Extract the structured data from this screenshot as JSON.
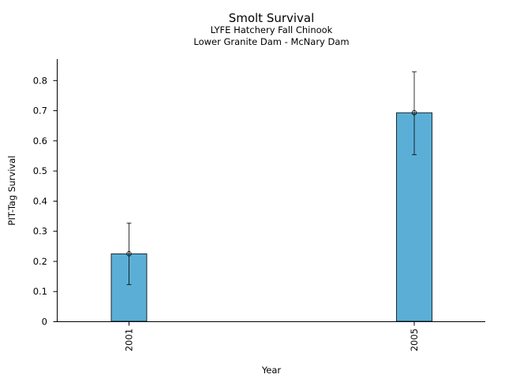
{
  "chart_data": {
    "type": "bar",
    "title": "Smolt Survival",
    "subtitle_lines": [
      "LYFE Hatchery Fall Chinook",
      "Lower Granite Dam - McNary Dam"
    ],
    "xlabel": "Year",
    "ylabel": "PIT-Tag Survival",
    "categories": [
      "2001",
      "2005"
    ],
    "values": [
      0.224,
      0.692
    ],
    "error_low": [
      0.122,
      0.553
    ],
    "error_high": [
      0.326,
      0.828
    ],
    "ylim": [
      0,
      0.87
    ],
    "yticks": [
      0,
      0.1,
      0.2,
      0.3,
      0.4,
      0.5,
      0.6,
      0.7,
      0.8
    ],
    "ytick_labels": [
      "0",
      "0.1",
      "0.2",
      "0.3",
      "0.4",
      "0.5",
      "0.6",
      "0.7",
      "0.8"
    ],
    "bar_color": "#5bafd6",
    "grid": false,
    "legend": "none"
  }
}
